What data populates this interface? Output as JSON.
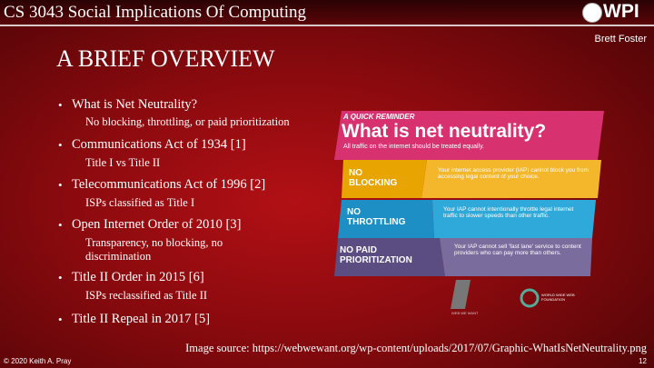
{
  "header": {
    "course": "CS 3043 Social Implications Of Computing",
    "logo": "WPI",
    "author": "Brett Foster"
  },
  "title": "A BRIEF OVERVIEW",
  "bullets": [
    {
      "text": "What is Net Neutrality?",
      "sub": "No blocking, throttling, or paid prioritization"
    },
    {
      "text": "Communications Act of 1934 [1]",
      "sub": "Title I vs Title II"
    },
    {
      "text": "Telecommunications Act of 1996 [2]",
      "sub": "ISPs classified as Title I"
    },
    {
      "text": "Open Internet Order of 2010 [3]",
      "sub": "Transparency, no blocking, no discrimination"
    },
    {
      "text": "Title II Order in 2015 [6]",
      "sub": "ISPs reclassified as Title II"
    },
    {
      "text": "Title II Repeal in 2017 [5]"
    }
  ],
  "graphic": {
    "kicker": "A QUICK REMINDER",
    "heading": "What is net neutrality?",
    "subheading": "All traffic on the internet should be treated equally.",
    "rows": [
      {
        "label": "NO BLOCKING",
        "text": "Your internet access provider (IAP) cannot block you from accessing legal content of your choice."
      },
      {
        "label": "NO THROTTLING",
        "text": "Your IAP cannot intentionally throttle legal internet traffic to slower speeds than other traffic."
      },
      {
        "label": "NO PAID PRIORITIZATION",
        "text": "Your IAP cannot sell 'fast lane' service to content providers who can pay more than others."
      }
    ],
    "logo_left": "WEB WE WANT",
    "logo_right": "WORLD WIDE WEB FOUNDATION"
  },
  "source": "Image source: https://webwewant.org/wp-content/uploads/2017/07/Graphic-WhatIsNetNeutrality.png",
  "footer": {
    "copyright": "© 2020 Keith A. Pray",
    "page": "12"
  }
}
